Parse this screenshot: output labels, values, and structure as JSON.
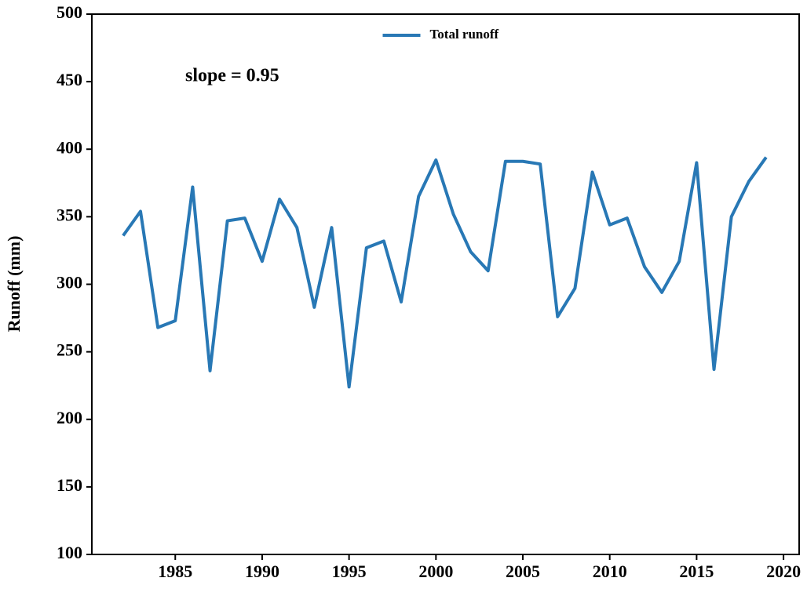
{
  "chart_data": {
    "type": "line",
    "ylabel": "Runoff (mm)",
    "annotation": "slope = 0.95",
    "x": [
      1982,
      1983,
      1984,
      1985,
      1986,
      1987,
      1988,
      1989,
      1990,
      1991,
      1992,
      1993,
      1994,
      1995,
      1996,
      1997,
      1998,
      1999,
      2000,
      2001,
      2002,
      2003,
      2004,
      2005,
      2006,
      2007,
      2008,
      2009,
      2010,
      2011,
      2012,
      2013,
      2014,
      2015,
      2016,
      2017,
      2018,
      2019
    ],
    "series": [
      {
        "name": "Total runoff",
        "color": "#2878b5",
        "values": [
          336,
          354,
          268,
          273,
          372,
          236,
          347,
          349,
          317,
          363,
          342,
          283,
          342,
          224,
          327,
          332,
          287,
          365,
          392,
          352,
          324,
          310,
          391,
          391,
          389,
          276,
          297,
          383,
          344,
          349,
          313,
          294,
          317,
          390,
          237,
          350,
          376,
          394
        ]
      }
    ],
    "xlim": [
      1980.2,
      2020.9
    ],
    "xticks": [
      1985,
      1990,
      1995,
      2000,
      2005,
      2010,
      2015,
      2020
    ],
    "ylim": [
      100,
      500
    ],
    "yticks": [
      100,
      150,
      200,
      250,
      300,
      350,
      400,
      450,
      500
    ],
    "legend": "upper center"
  }
}
